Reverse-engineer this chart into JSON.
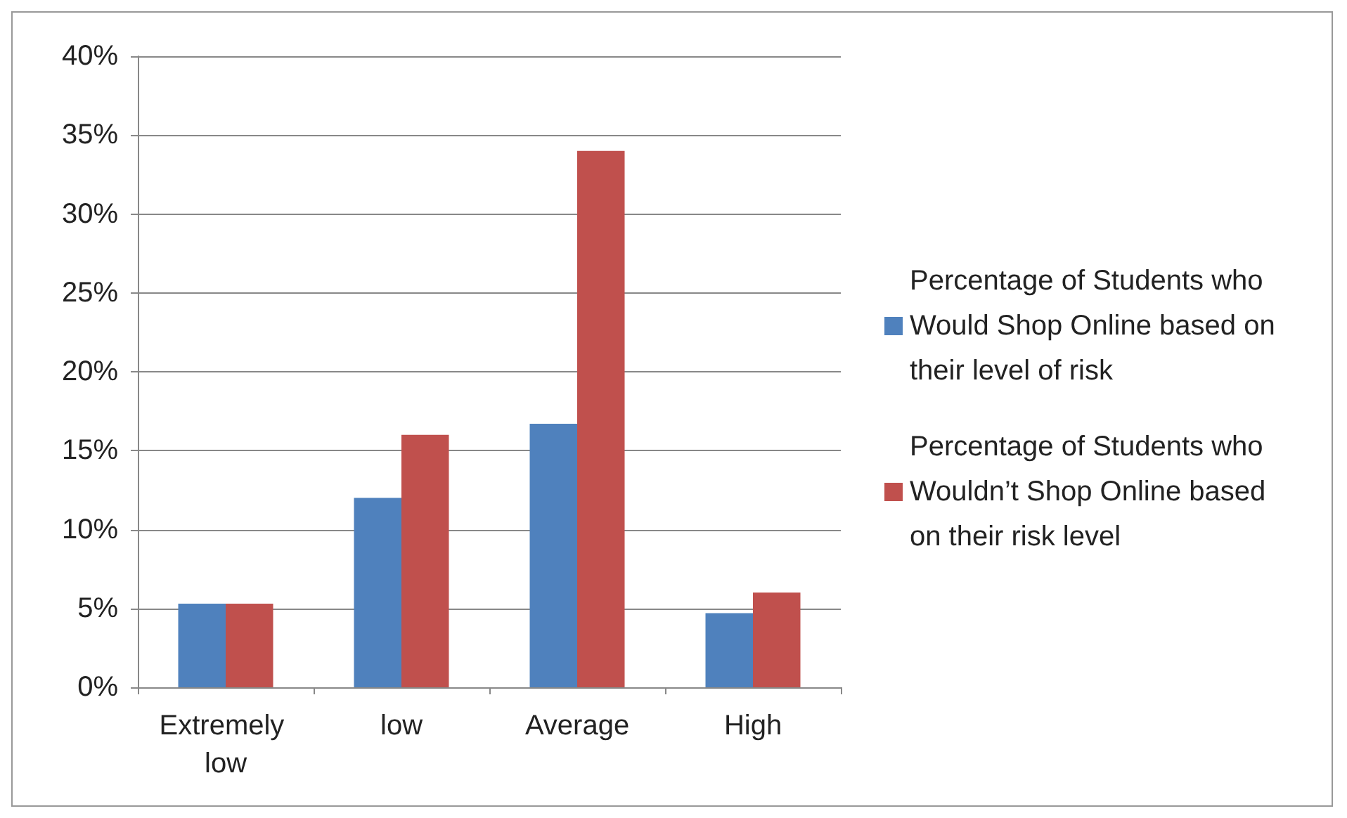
{
  "chart_data": {
    "type": "bar",
    "categories": [
      "Extremely low",
      "low",
      "Average",
      "High"
    ],
    "series": [
      {
        "name": "Percentage of Students who Would Shop Online based on their level of risk",
        "color": "#4f81bd",
        "values": [
          5.3,
          12,
          16.7,
          4.7
        ]
      },
      {
        "name": "Percentage of Students who Wouldn’t Shop Online based on their risk level",
        "color": "#c0504d",
        "values": [
          5.3,
          16,
          34,
          6
        ]
      }
    ],
    "ylim": [
      0,
      40
    ],
    "yticks": [
      {
        "value": 0,
        "label": "0%"
      },
      {
        "value": 5,
        "label": "5%"
      },
      {
        "value": 10,
        "label": "10%"
      },
      {
        "value": 15,
        "label": "15%"
      },
      {
        "value": 20,
        "label": "20%"
      },
      {
        "value": 25,
        "label": "25%"
      },
      {
        "value": 30,
        "label": "30%"
      },
      {
        "value": 35,
        "label": "35%"
      },
      {
        "value": 40,
        "label": "40%"
      }
    ],
    "grid": "y",
    "legend": "right"
  }
}
